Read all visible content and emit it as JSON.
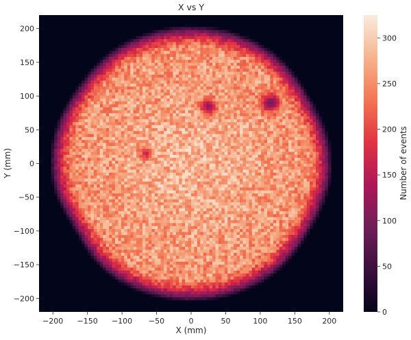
{
  "chart_data": {
    "type": "heatmap",
    "title": "X vs Y",
    "xlabel": "X (mm)",
    "ylabel": "Y (mm)",
    "xlim": [
      -220,
      220
    ],
    "ylim": [
      -220,
      220
    ],
    "xticks": [
      -200,
      -150,
      -100,
      -50,
      0,
      50,
      100,
      150,
      200
    ],
    "yticks": [
      -200,
      -150,
      -100,
      -50,
      0,
      50,
      100,
      150,
      200
    ],
    "grid": false,
    "bins_per_axis": 100,
    "detector_radius_mm": 200,
    "uniform_count": 250,
    "noise_range": [
      -40,
      40
    ],
    "radial_gradient_range_mm": [
      165,
      205
    ],
    "gradient_counts": [
      320,
      0
    ],
    "center_enhancement": 30,
    "hot_spots": [],
    "cold_spots": [
      {
        "x": 25,
        "y": 85,
        "radius_mm": 8,
        "min_count": 120
      },
      {
        "x": 115,
        "y": 90,
        "radius_mm": 9,
        "min_count": 90
      },
      {
        "x": -65,
        "y": 15,
        "radius_mm": 6,
        "min_count": 160
      }
    ],
    "edge_bumps": [
      {
        "angle_deg": 30,
        "extra_mm": -6
      },
      {
        "angle_deg": 145,
        "extra_mm": -4
      },
      {
        "angle_deg": 210,
        "extra_mm": -8
      },
      {
        "angle_deg": 330,
        "extra_mm": -5
      }
    ],
    "colorbar": {
      "label": "Number of events",
      "min": 0,
      "max": 325,
      "ticks": [
        0,
        50,
        100,
        150,
        200,
        250,
        300
      ],
      "colormap": "rocket",
      "stops": [
        "#03051a",
        "#3b0f3e",
        "#701f57",
        "#ad1759",
        "#e13342",
        "#f37651",
        "#f6b48f",
        "#faebdd"
      ]
    }
  }
}
